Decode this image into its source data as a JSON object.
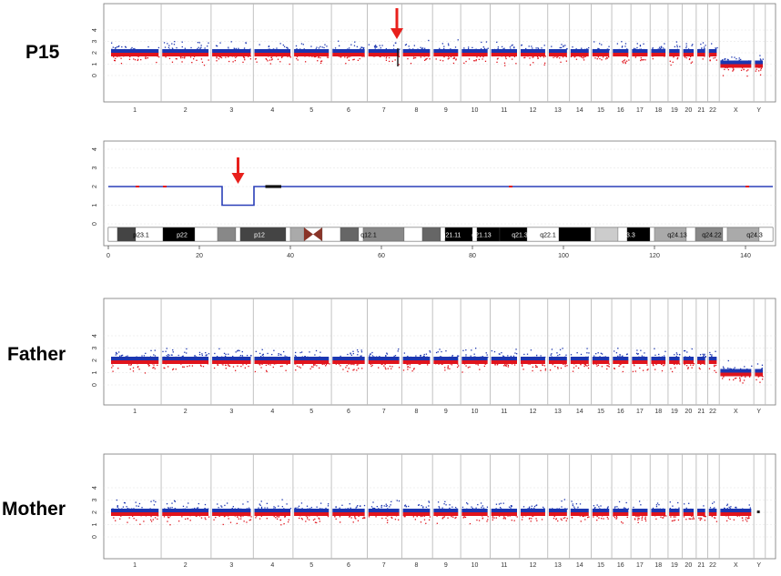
{
  "colors": {
    "upper": "#1c36b0",
    "lower": "#e0141c",
    "grid": "#bbbbbb",
    "arrow": "#e8201c",
    "frame": "#777777",
    "cnline": "#2a3fb8"
  },
  "chart_data": [
    {
      "type": "scatter",
      "panel_label": "P15",
      "ylim": [
        0,
        4
      ],
      "yticks": [
        "0",
        "1",
        "2",
        "3",
        "4"
      ],
      "categories": [
        "1",
        "2",
        "3",
        "4",
        "5",
        "6",
        "7",
        "8",
        "9",
        "10",
        "11",
        "12",
        "13",
        "14",
        "15",
        "16",
        "17",
        "18",
        "19",
        "20",
        "21",
        "22",
        "X",
        "Y"
      ],
      "copy_number": [
        2,
        2,
        2,
        2,
        2,
        2,
        2,
        2,
        2,
        2,
        2,
        2,
        2,
        2,
        2,
        2,
        2,
        2,
        2,
        2,
        2,
        2,
        1,
        1
      ],
      "annotation": {
        "chromosome": "8",
        "event": "deletion"
      }
    },
    {
      "type": "line",
      "ylim": [
        0,
        4
      ],
      "yticks": [
        "0",
        "1",
        "2",
        "3",
        "4"
      ],
      "xlim": [
        0,
        146
      ],
      "xticks": [
        "0",
        "20",
        "40",
        "60",
        "80",
        "100",
        "120",
        "140"
      ],
      "x": [
        0,
        25,
        25,
        32,
        32,
        146
      ],
      "y": [
        2,
        2,
        1,
        1,
        2,
        2
      ],
      "bands": [
        "p23.1",
        "p22",
        "p12",
        "q12.1",
        "q21.11",
        "q21.13",
        "q21.3",
        "q22.1",
        "q22.3",
        "q23.3",
        "q24.13",
        "q24.22",
        "q24.3"
      ],
      "annotation": {
        "x": 28.5,
        "event": "deletion"
      }
    },
    {
      "type": "scatter",
      "panel_label": "Father",
      "ylim": [
        0,
        4
      ],
      "yticks": [
        "0",
        "1",
        "2",
        "3",
        "4"
      ],
      "categories": [
        "1",
        "2",
        "3",
        "4",
        "5",
        "6",
        "7",
        "8",
        "9",
        "10",
        "11",
        "12",
        "13",
        "14",
        "15",
        "16",
        "17",
        "18",
        "19",
        "20",
        "21",
        "22",
        "X",
        "Y"
      ],
      "copy_number": [
        2,
        2,
        2,
        2,
        2,
        2,
        2,
        2,
        2,
        2,
        2,
        2,
        2,
        2,
        2,
        2,
        2,
        2,
        2,
        2,
        2,
        2,
        1,
        1
      ]
    },
    {
      "type": "scatter",
      "panel_label": "Mother",
      "ylim": [
        0,
        4
      ],
      "yticks": [
        "0",
        "1",
        "2",
        "3",
        "4"
      ],
      "categories": [
        "1",
        "2",
        "3",
        "4",
        "5",
        "6",
        "7",
        "8",
        "9",
        "10",
        "11",
        "12",
        "13",
        "14",
        "15",
        "16",
        "17",
        "18",
        "19",
        "20",
        "21",
        "22",
        "X",
        "Y"
      ],
      "copy_number": [
        2,
        2,
        2,
        2,
        2,
        2,
        2,
        2,
        2,
        2,
        2,
        2,
        2,
        2,
        2,
        2,
        2,
        2,
        2,
        2,
        2,
        2,
        2,
        0
      ]
    }
  ]
}
